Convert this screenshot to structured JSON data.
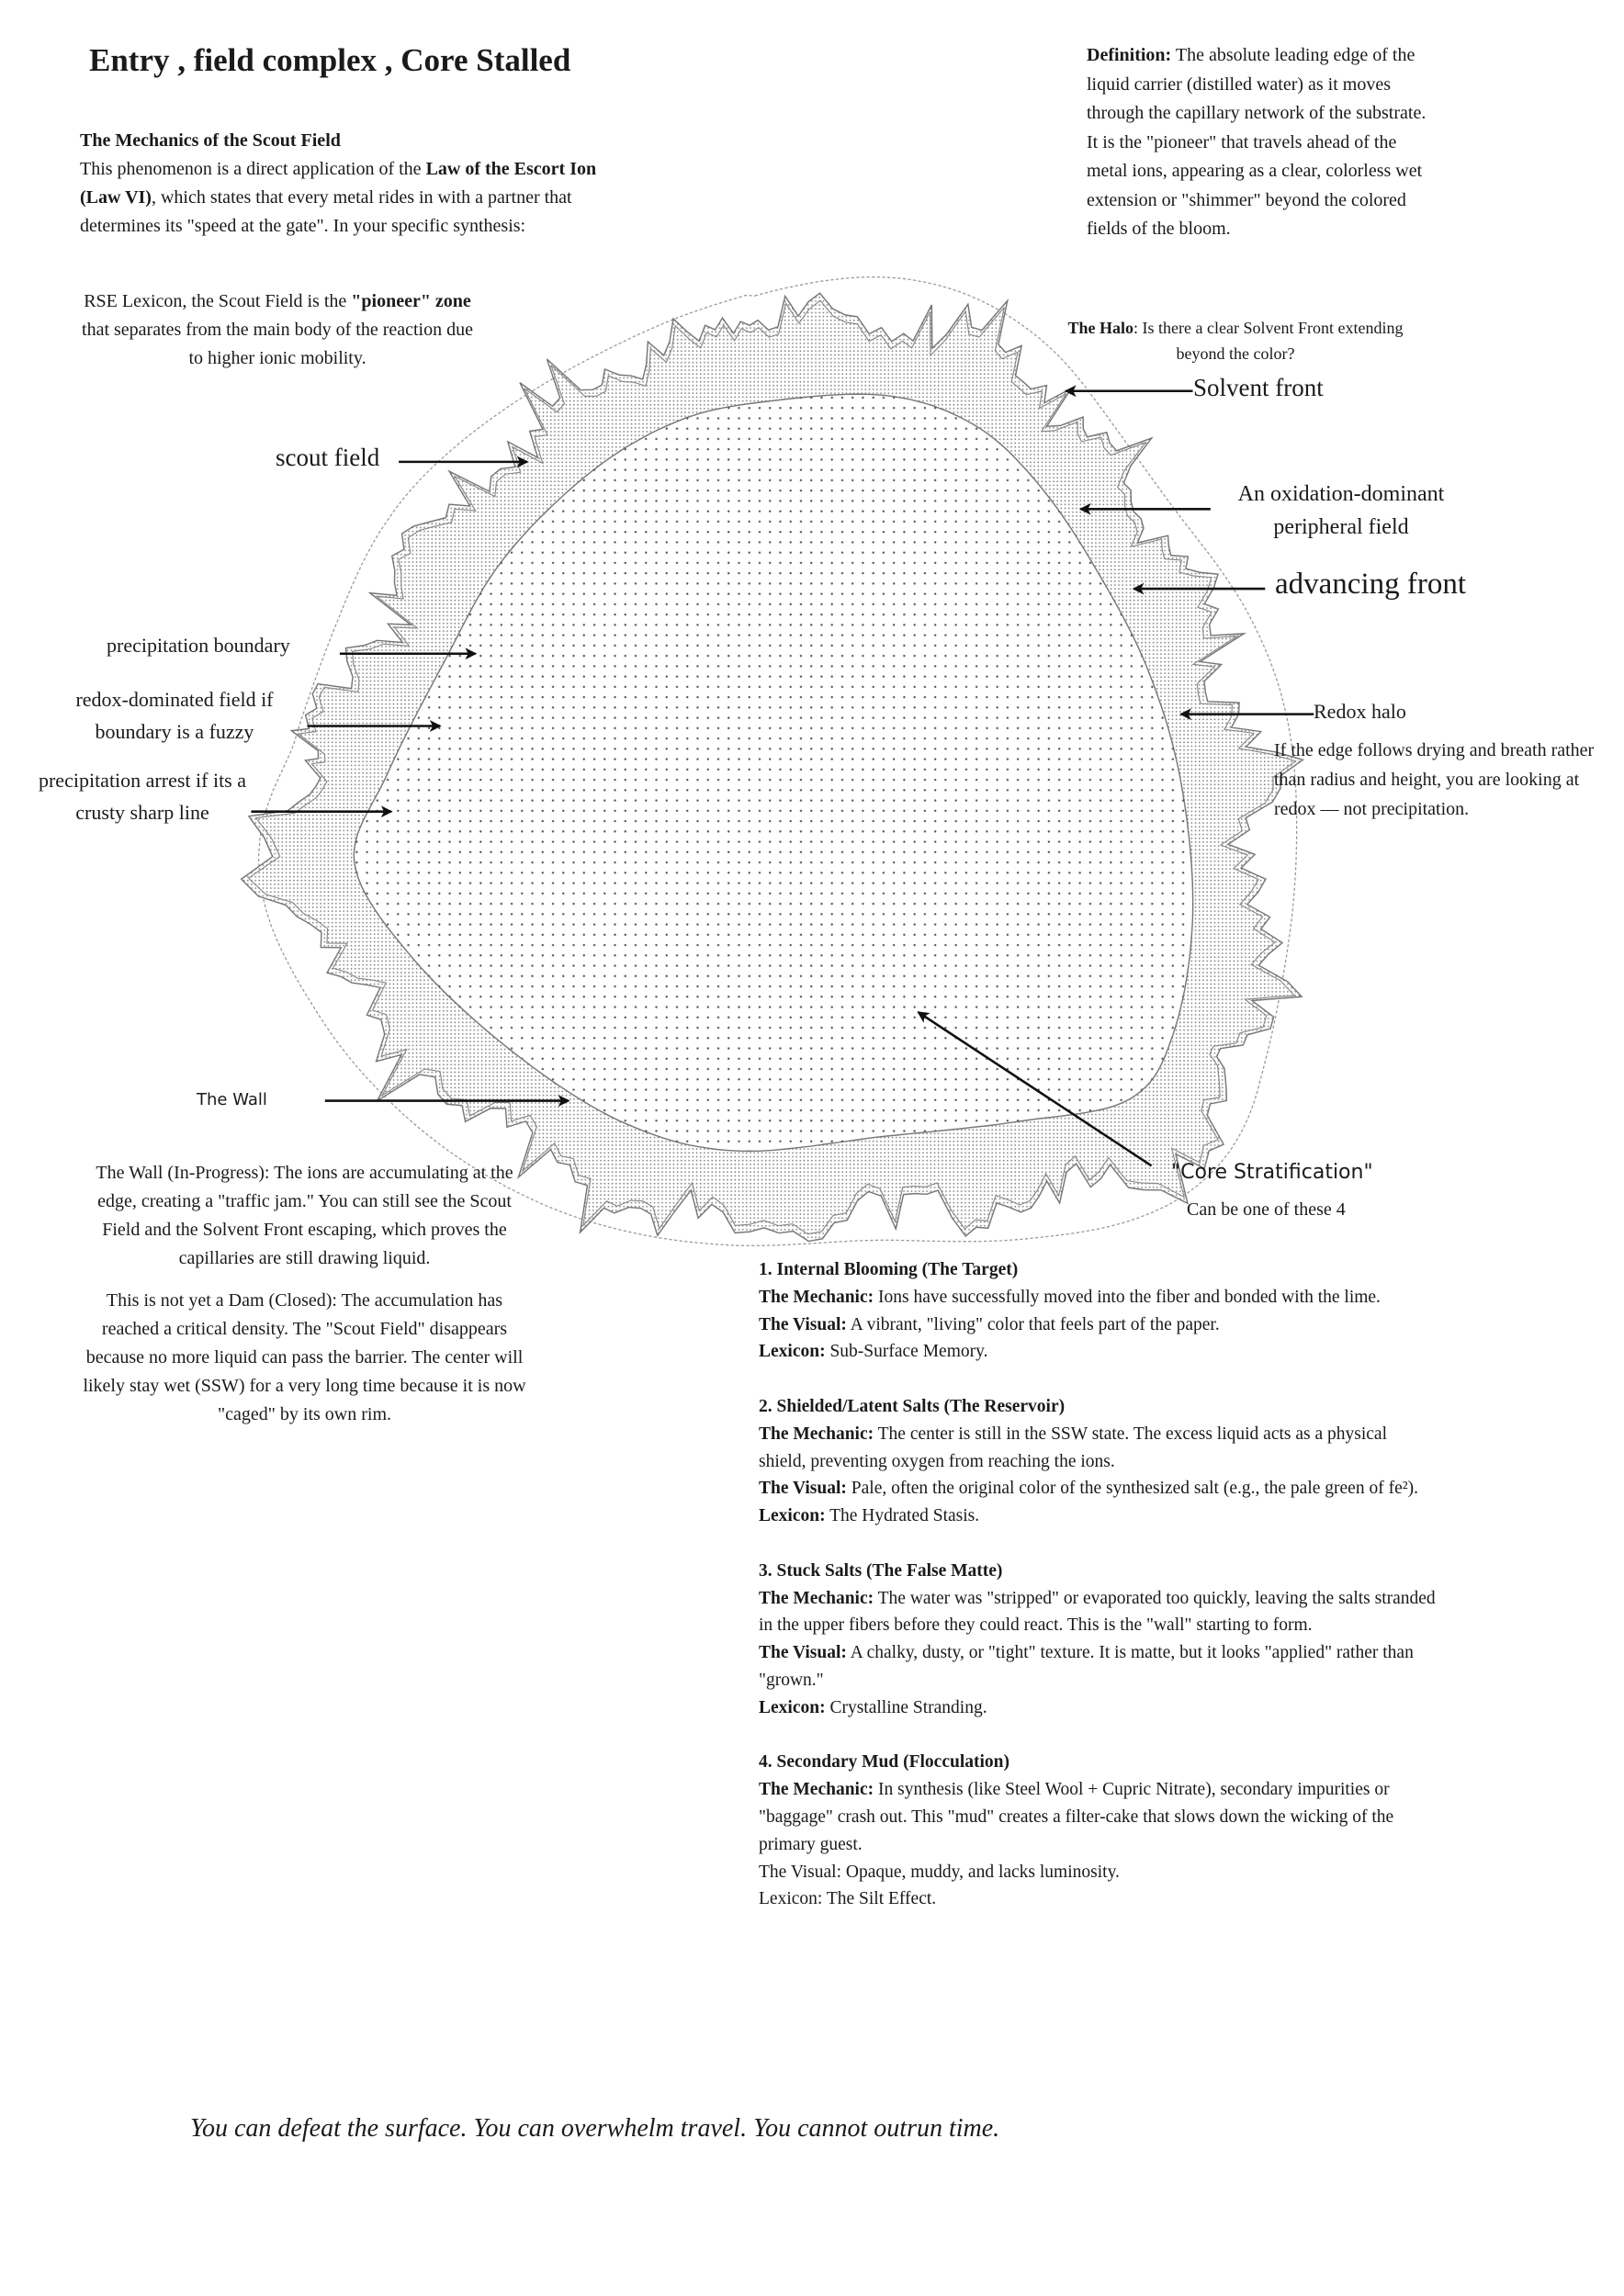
{
  "title": "Entry , field complex , Core Stalled",
  "mechanics": {
    "heading": "The Mechanics of the Scout Field",
    "text_1": "This phenomenon is a direct application of the ",
    "bold_1": "Law of the Escort Ion (Law VI)",
    "text_2": ", which states that every metal rides in with a partner that determines its \"speed at the gate\". In your specific synthesis:"
  },
  "rse": {
    "text_1": "RSE Lexicon, the Scout Field is the ",
    "bold_1": "\"pioneer\" zone",
    "text_2": " that separates from the main body of the reaction due to higher ionic mobility."
  },
  "definition": {
    "label": "Definition:",
    "text": " The absolute leading edge of the liquid carrier (distilled water) as it moves through the capillary network of the substrate. It is the \"pioneer\" that travels ahead of the metal ions, appearing as a clear, colorless wet extension or \"shimmer\" beyond the colored fields of the bloom."
  },
  "halo_question": {
    "label": "The Halo",
    "text": ": Is there a clear Solvent Front extending beyond the color?"
  },
  "labels": {
    "solvent_front": "Solvent front",
    "scout_field": "scout field",
    "oxidation_field": "An oxidation-dominant peripheral field",
    "advancing_front": "advancing front",
    "precipitation_boundary": "precipitation boundary",
    "redox_dominated": "redox-dominated field if boundary is a fuzzy",
    "precipitation_arrest": "precipitation arrest if its a crusty sharp line",
    "redox_halo": "Redox halo",
    "redox_note": "If the edge follows drying and breath rather than radius and height, you are looking at redox — not precipitation.",
    "the_wall": "The Wall",
    "core_stratification": "\"Core Stratification\"",
    "can_be": "Can be one of these 4"
  },
  "wall_paragraphs": [
    "The Wall (In-Progress): The ions are accumulating at the edge, creating a \"traffic jam.\" You can still see the Scout Field and the Solvent Front escaping, which proves the capillaries are still drawing liquid.",
    "This is not yet a  Dam (Closed): The accumulation has reached a critical density. The \"Scout Field\" disappears because no more liquid can pass the barrier. The center will likely stay wet (SSW) for a very long time because it is now \"caged\" by its own rim."
  ],
  "stratification_list": [
    {
      "title": "1. Internal Blooming (The Target)",
      "mechanic_label": "The Mechanic:",
      "mechanic": " Ions have successfully moved into the fiber and bonded with the lime.",
      "visual_label": "The Visual:",
      "visual": " A vibrant, \"living\" color that feels part of the paper.",
      "lexicon_label": "Lexicon:",
      "lexicon": " Sub-Surface Memory."
    },
    {
      "title": "2. Shielded/Latent Salts (The Reservoir)",
      "mechanic_label": "The Mechanic:",
      "mechanic": " The center is still in the SSW state. The excess liquid acts as a physical shield, preventing oxygen from reaching the ions.",
      "visual_label": "The Visual:",
      "visual": " Pale, often the original color of the synthesized salt (e.g., the pale green of fe²).",
      "lexicon_label": "Lexicon:",
      "lexicon": " The Hydrated Stasis."
    },
    {
      "title": "3. Stuck Salts (The False Matte)",
      "mechanic_label": "The Mechanic:",
      "mechanic": " The water was \"stripped\" or evaporated too quickly, leaving the salts stranded in the upper fibers before they could react. This is the \"wall\" starting to form.",
      "visual_label": "The Visual:",
      "visual": " A chalky, dusty, or \"tight\" texture. It is matte, but it looks \"applied\" rather than \"grown.\"",
      "lexicon_label": "Lexicon:",
      "lexicon": " Crystalline Stranding."
    },
    {
      "title": "4. Secondary Mud (Flocculation)",
      "mechanic_label": "The Mechanic:",
      "mechanic": " In synthesis (like Steel Wool + Cupric Nitrate), secondary impurities or \"baggage\" crash out. This \"mud\" creates a filter-cake that slows down the wicking of the primary guest.",
      "visual_label": "",
      "visual": "The Visual: Opaque, muddy, and lacks luminosity.",
      "lexicon_label": "",
      "lexicon": "Lexicon: The Silt Effect."
    }
  ],
  "footer": "You can defeat the surface. You can overwhelm travel. You cannot outrun time.",
  "colors": {
    "ink": "#1a1a1a",
    "stipple": "#555555",
    "outline": "#777777"
  }
}
